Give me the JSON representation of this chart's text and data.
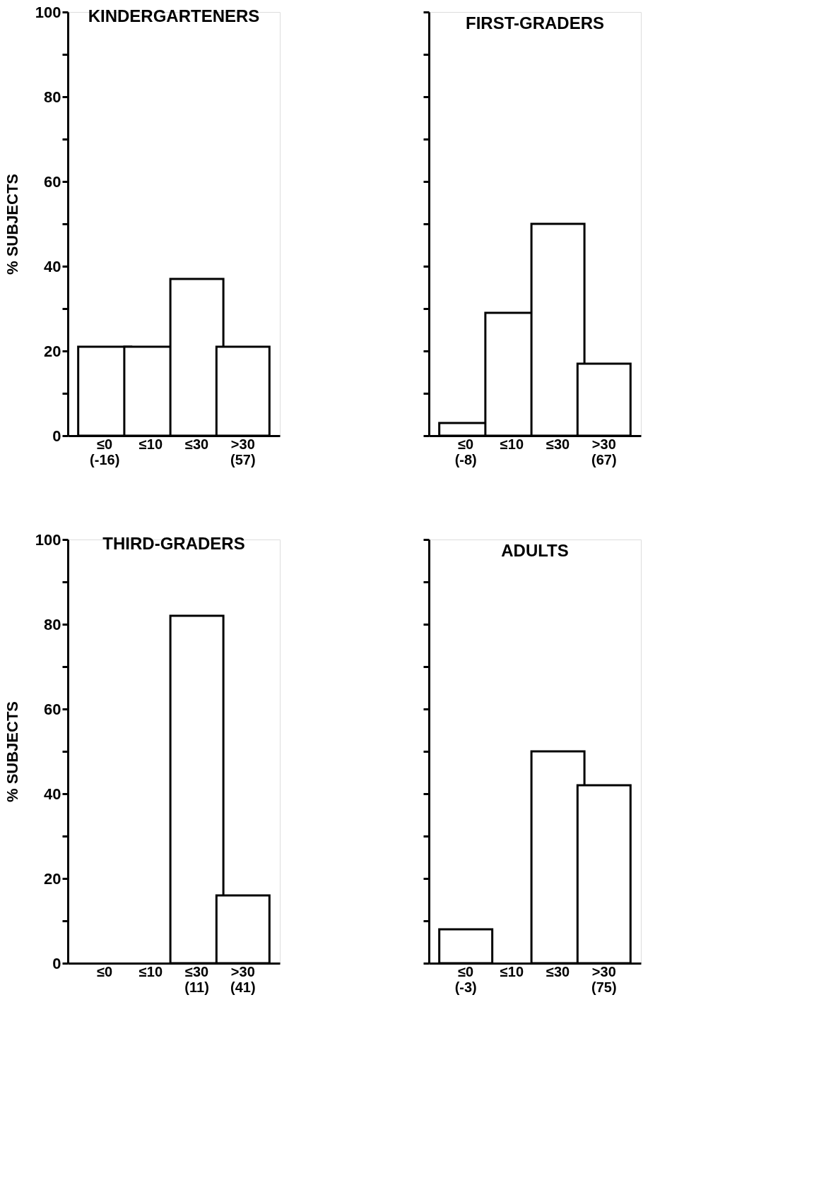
{
  "chart_data": [
    {
      "type": "bar",
      "title": "KINDERGARTENERS",
      "ylabel": "% SUBJECTS",
      "categories": [
        "≤0\n(-16)",
        "≤10",
        "≤30",
        ">30\n(57)"
      ],
      "values": [
        21,
        21,
        37,
        21
      ],
      "color": "#ffffff",
      "ylim": [
        0,
        100
      ],
      "yticks": [
        0,
        {
          "value": 10,
          "label": null
        },
        20,
        {
          "value": 30,
          "label": null
        },
        40,
        {
          "value": 50,
          "label": null
        },
        60,
        {
          "value": 70,
          "label": null
        },
        80,
        {
          "value": 90,
          "label": null
        },
        100
      ],
      "grid": false
    },
    {
      "type": "bar",
      "title": "FIRST-GRADERS",
      "categories": [
        "≤0\n(-8)",
        "≤10",
        "≤30",
        ">30\n(67)"
      ],
      "values": [
        3,
        29,
        50,
        17
      ],
      "color": "#ffffff",
      "ylim": [
        0,
        100
      ],
      "yticks": [
        0,
        {
          "value": 10,
          "label": null
        },
        20,
        {
          "value": 30,
          "label": null
        },
        40,
        {
          "value": 50,
          "label": null
        },
        60,
        {
          "value": 70,
          "label": null
        },
        80,
        {
          "value": 90,
          "label": null
        },
        100
      ],
      "grid": false,
      "tick_labels": "x"
    },
    {
      "type": "bar",
      "title": "THIRD-GRADERS",
      "ylabel": "% SUBJECTS",
      "categories": [
        "≤0",
        "≤10",
        "≤30\n(11)",
        ">30\n(41)"
      ],
      "values": [
        0,
        0,
        82,
        16
      ],
      "color": "#ffffff",
      "ylim": [
        0,
        100
      ],
      "yticks": [
        0,
        {
          "value": 10,
          "label": null
        },
        20,
        {
          "value": 30,
          "label": null
        },
        40,
        {
          "value": 50,
          "label": null
        },
        60,
        {
          "value": 70,
          "label": null
        },
        80,
        {
          "value": 90,
          "label": null
        },
        100
      ],
      "grid": false
    },
    {
      "type": "bar",
      "title": "ADULTS",
      "categories": [
        "≤0\n(-3)",
        "≤10",
        "≤30",
        ">30\n(75)"
      ],
      "values": [
        8,
        0,
        50,
        42
      ],
      "color": "#ffffff",
      "ylim": [
        0,
        100
      ],
      "yticks": [
        0,
        {
          "value": 10,
          "label": null
        },
        20,
        {
          "value": 30,
          "label": null
        },
        40,
        {
          "value": 50,
          "label": null
        },
        60,
        {
          "value": 70,
          "label": null
        },
        80,
        {
          "value": 90,
          "label": null
        },
        100
      ],
      "grid": false,
      "tick_labels": "x"
    }
  ]
}
